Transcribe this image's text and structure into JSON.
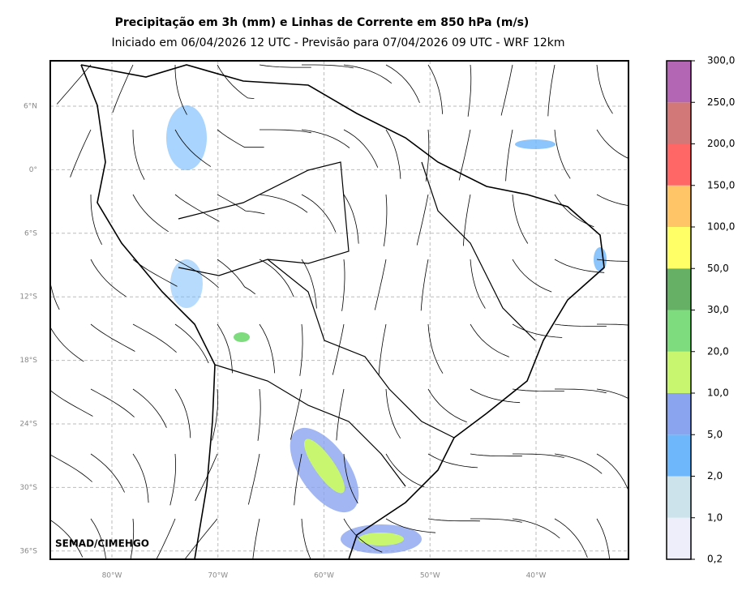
{
  "header": {
    "title": "Precipitação em 3h (mm) e Linhas de Corrente em 850 hPa (m/s)",
    "subtitle": "Iniciado em 06/04/2026 12 UTC - Previsão para 07/04/2026 09 UTC - WRF 12km"
  },
  "map": {
    "lat_labels": [
      "6°N",
      "0°",
      "6°S",
      "12°S",
      "18°S",
      "24°S",
      "30°S",
      "36°S"
    ],
    "lon_labels": [
      "80°W",
      "70°W",
      "60°W",
      "50°W",
      "40°W"
    ],
    "credit": "SEMAD/CIMEHGO"
  },
  "colorbar": {
    "levels": [
      "0,2",
      "1,0",
      "2,0",
      "5,0",
      "10,0",
      "20,0",
      "30,0",
      "50,0",
      "100,0",
      "150,0",
      "200,0",
      "250,0",
      "300,0"
    ],
    "colors": [
      "#eeeefa",
      "#cde3ec",
      "#6fb7fb",
      "#8aa4ef",
      "#c8f76f",
      "#7edb7e",
      "#66b066",
      "#ffff66",
      "#ffc566",
      "#ff6666",
      "#d27878",
      "#b366b3"
    ]
  }
}
